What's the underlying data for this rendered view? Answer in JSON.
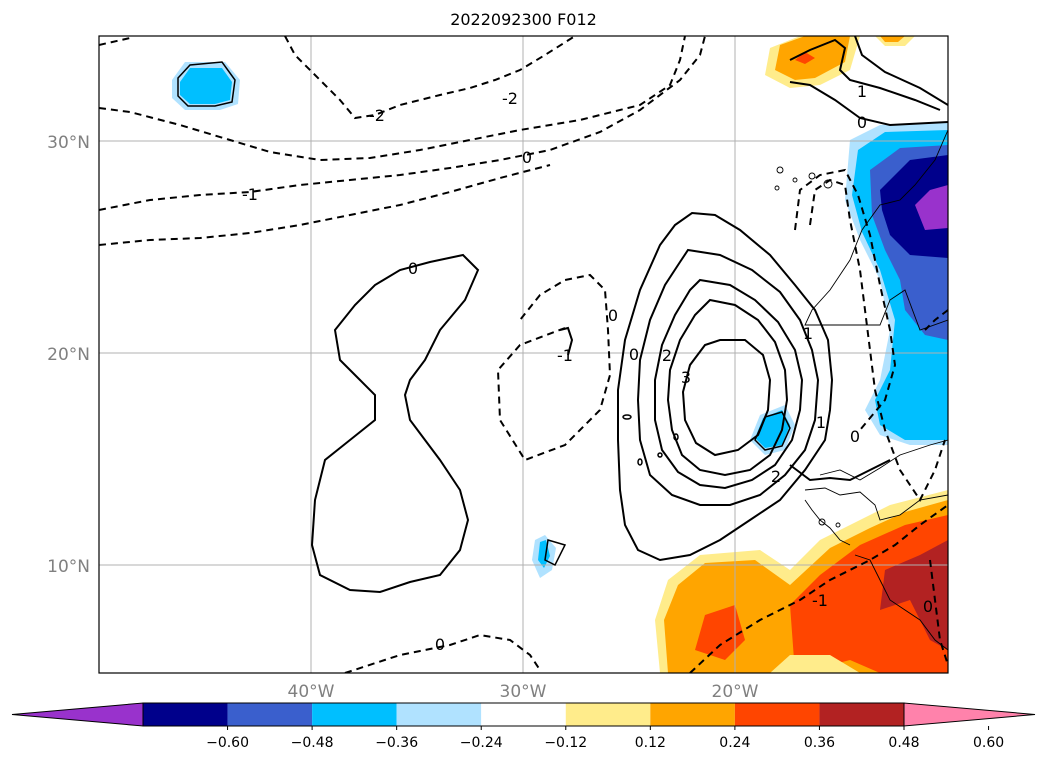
{
  "title": "2022092300 F012",
  "map": {
    "lat_labels": [
      "30°N",
      "20°N",
      "10°N"
    ],
    "lon_labels": [
      "40°W",
      "30°W",
      "20°W"
    ],
    "grid": true,
    "contour_labels": [
      "-2",
      "-2",
      "0",
      "-1",
      "0",
      "-1",
      "0",
      "0",
      "2",
      "3",
      "1",
      "2",
      "0",
      "1",
      "0",
      "0",
      "-1",
      "0",
      "1"
    ]
  },
  "colorbar": {
    "tick_labels": [
      "−0.60",
      "−0.48",
      "−0.36",
      "−0.24",
      "−0.12",
      "0.12",
      "0.24",
      "0.36",
      "0.48",
      "0.60"
    ],
    "colors": [
      "#9932cc",
      "#00008b",
      "#3a5fcd",
      "#00bfff",
      "#b0e2ff",
      "#ffffff",
      "#ffec8b",
      "#ffa500",
      "#ff4500",
      "#b22222",
      "#ff82ab"
    ],
    "extend": "both"
  }
}
